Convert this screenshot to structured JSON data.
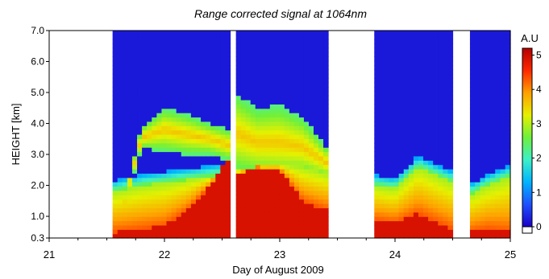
{
  "chart_data": {
    "type": "heatmap",
    "title": "Range corrected signal at 1064nm",
    "xlabel": "Day of August 2009",
    "ylabel": "HEIGHT [km]",
    "colorbar_label": "A.U",
    "x_ticks": [
      "21",
      "22",
      "23",
      "24",
      "25"
    ],
    "x_range": [
      21,
      25
    ],
    "y_ticks": [
      "0.3",
      "1.0",
      "2.0",
      "3.0",
      "4.0",
      "5.0",
      "6.0",
      "7.0"
    ],
    "y_range": [
      0.3,
      7.0
    ],
    "colorbar_ticks": [
      "0",
      "1",
      "2",
      "3",
      "4",
      "5"
    ],
    "colorbar_range": [
      0,
      5.2
    ],
    "colormap": [
      "#1a00c8",
      "#1e50ff",
      "#00b4ff",
      "#3cf0c8",
      "#6ef03c",
      "#e6f000",
      "#ffa000",
      "#ff2800",
      "#b40000"
    ],
    "no_data_color": "#ffffff",
    "data_segments": [
      {
        "start": 21.55,
        "end": 22.57
      },
      {
        "start": 22.62,
        "end": 23.42
      },
      {
        "start": 23.82,
        "end": 24.5
      },
      {
        "start": 24.65,
        "end": 25.0
      }
    ],
    "layers": {
      "x": [
        21.55,
        21.8,
        22.0,
        22.2,
        22.4,
        22.57,
        22.62,
        22.8,
        23.0,
        23.2,
        23.42,
        23.82,
        24.0,
        24.2,
        24.5,
        24.65,
        24.8,
        25.0
      ],
      "boundary_layer_top_km": [
        1.8,
        2.0,
        2.1,
        2.2,
        2.3,
        2.4,
        2.5,
        2.6,
        2.7,
        2.6,
        2.4,
        2.0,
        1.9,
        2.6,
        2.1,
        1.7,
        2.0,
        2.3
      ],
      "aerosol_layer_top_km": [
        0,
        3.9,
        4.5,
        4.3,
        4.0,
        3.8,
        5.0,
        4.5,
        4.6,
        4.2,
        3.2,
        0,
        0,
        0,
        0,
        0,
        0,
        0
      ],
      "aerosol_layer_bottom_km": [
        0,
        3.2,
        3.1,
        3.0,
        3.0,
        2.8,
        2.4,
        2.3,
        2.2,
        2.3,
        2.2,
        0,
        0,
        0,
        0,
        0,
        0,
        0
      ],
      "surface_signal_top_km": [
        0.5,
        0.6,
        0.7,
        1.2,
        2.0,
        3.0,
        2.3,
        2.6,
        2.5,
        1.5,
        1.2,
        0.9,
        0.8,
        1.1,
        0.6,
        0.5,
        0.6,
        0.5
      ]
    }
  }
}
